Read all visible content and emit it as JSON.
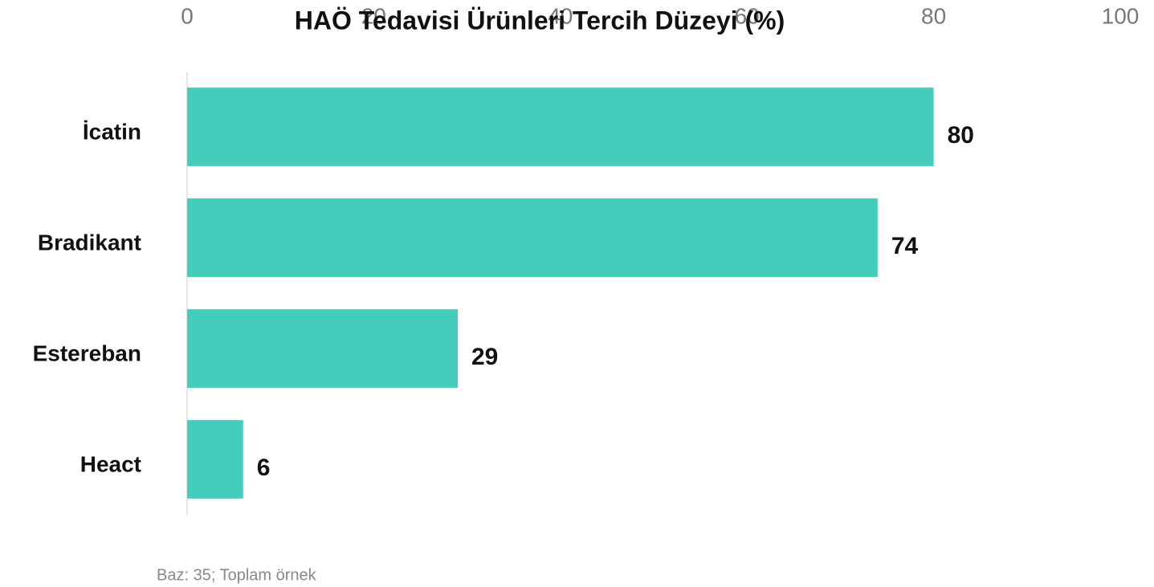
{
  "chart_data": {
    "type": "bar",
    "orientation": "horizontal",
    "title": "HAÖ Tedavisi Ürünleri Tercih Düzeyi (%)",
    "categories": [
      "İcatin",
      "Bradikant",
      "Estereban",
      "Heact"
    ],
    "values": [
      80,
      74,
      29,
      6
    ],
    "color": "#45cdbc",
    "xlim": [
      0,
      100
    ],
    "xticks": [
      0,
      20,
      40,
      60,
      80,
      100
    ],
    "grid": false,
    "note": "Baz: 35; Toplam örnek"
  }
}
